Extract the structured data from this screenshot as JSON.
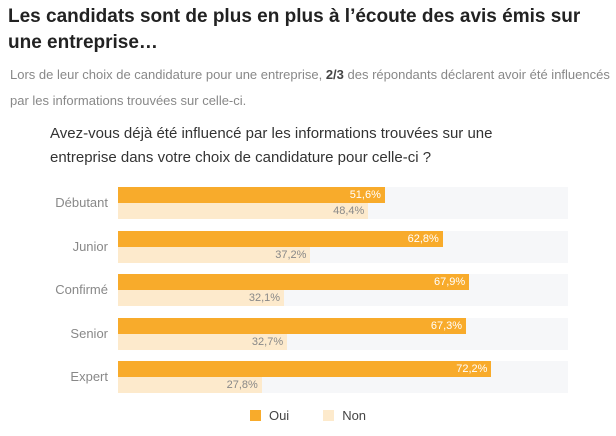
{
  "header": {
    "title": "Les candidats sont de plus en plus à l’écoute des avis émis sur une entreprise…",
    "subtitle_before": "Lors de leur choix de candidature pour une entreprise, ",
    "subtitle_bold": "2/3",
    "subtitle_after": " des répondants déclarent avoir été influencés par les informations trouvées sur celle-ci."
  },
  "chart_data": {
    "type": "bar",
    "orientation": "horizontal",
    "title": "Avez-vous déjà été influencé par les informations trouvées sur une entreprise dans votre choix de candidature pour celle-ci ?",
    "categories": [
      "Débutant",
      "Junior",
      "Confirmé",
      "Senior",
      "Expert"
    ],
    "series": [
      {
        "name": "Oui",
        "color": "#f8ab2b",
        "values": [
          51.6,
          62.8,
          67.9,
          67.3,
          72.2
        ],
        "labels": [
          "51,6%",
          "62,8%",
          "67,9%",
          "67,3%",
          "72,2%"
        ]
      },
      {
        "name": "Non",
        "color": "#fdeacc",
        "values": [
          48.4,
          37.2,
          32.1,
          32.7,
          27.8
        ],
        "labels": [
          "48,4%",
          "37,2%",
          "32,1%",
          "32,7%",
          "27,8%"
        ]
      }
    ],
    "xlim": [
      0,
      87
    ],
    "grid": false,
    "legend": "bottom"
  }
}
